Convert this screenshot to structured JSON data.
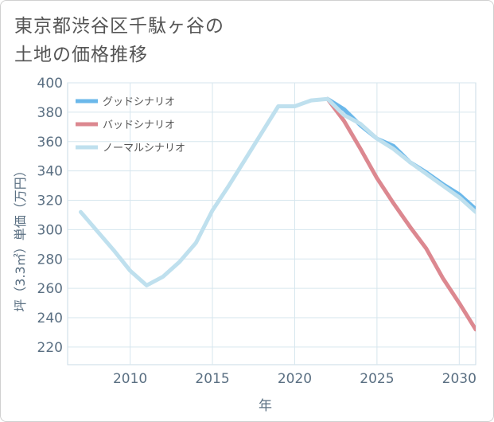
{
  "title_lines": [
    "東京都渋谷区千駄ヶ谷の",
    "土地の価格推移"
  ],
  "chart_data": {
    "type": "line",
    "title": "東京都渋谷区千駄ヶ谷の土地の価格推移",
    "xlabel": "年",
    "ylabel": "坪（3.3㎡）単価（万円）",
    "xlim": [
      2006.2,
      2031
    ],
    "ylim": [
      208,
      400
    ],
    "xticks": [
      2010,
      2015,
      2020,
      2025,
      2030
    ],
    "yticks": [
      220,
      240,
      260,
      280,
      300,
      320,
      340,
      360,
      380,
      400
    ],
    "grid": true,
    "legend_position": "top-left",
    "series": [
      {
        "name": "グッドシナリオ",
        "color": "#6bb8ea",
        "x": [
          2022,
          2023,
          2024,
          2025,
          2026,
          2027,
          2028,
          2029,
          2030,
          2031
        ],
        "y": [
          389,
          382,
          371,
          362,
          357,
          346,
          339,
          331,
          324,
          314
        ]
      },
      {
        "name": "バッドシナリオ",
        "color": "#dc8890",
        "x": [
          2022,
          2023,
          2024,
          2025,
          2026,
          2027,
          2028,
          2029,
          2030,
          2031
        ],
        "y": [
          389,
          374,
          355,
          335,
          318,
          302,
          287,
          267,
          250,
          232
        ]
      },
      {
        "name": "ノーマルシナリオ",
        "color": "#bfe0ee",
        "x": [
          2007,
          2008,
          2009,
          2010,
          2011,
          2012,
          2013,
          2014,
          2015,
          2016,
          2017,
          2018,
          2019,
          2020,
          2021,
          2022,
          2023,
          2024,
          2025,
          2026,
          2027,
          2028,
          2029,
          2030,
          2031
        ],
        "y": [
          312,
          299,
          286,
          272,
          262,
          268,
          278,
          291,
          313,
          330,
          348,
          366,
          384,
          384,
          388,
          389,
          378,
          372,
          362,
          355,
          346,
          338,
          330,
          322,
          312
        ]
      }
    ]
  }
}
